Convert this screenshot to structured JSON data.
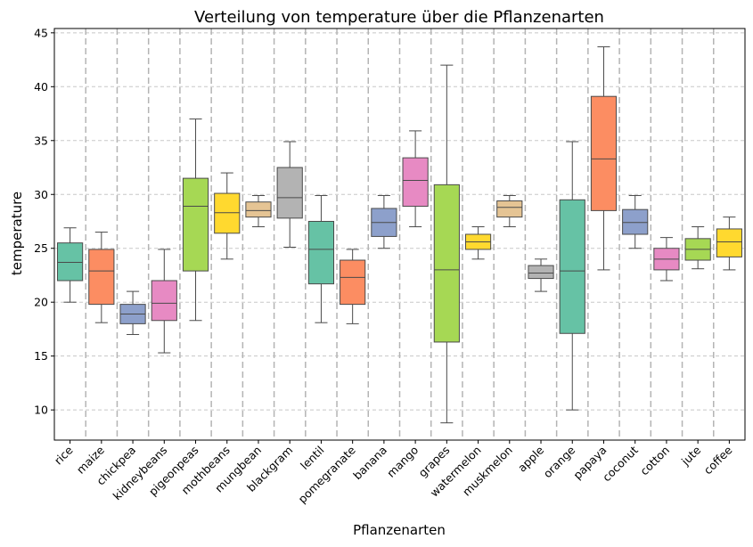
{
  "chart_data": {
    "type": "box",
    "title": "Verteilung von temperature über die Pflanzenarten",
    "xlabel": "Pflanzenarten",
    "ylabel": "temperature",
    "ylim": [
      7.2,
      45.4
    ],
    "yticks": [
      10,
      15,
      20,
      25,
      30,
      35,
      40,
      45
    ],
    "grid": true,
    "categories": [
      "rice",
      "maize",
      "chickpea",
      "kidneybeans",
      "pigeonpeas",
      "mothbeans",
      "mungbean",
      "blackgram",
      "lentil",
      "pomegranate",
      "banana",
      "mango",
      "grapes",
      "watermelon",
      "muskmelon",
      "apple",
      "orange",
      "papaya",
      "coconut",
      "cotton",
      "jute",
      "coffee"
    ],
    "colors": [
      "#66c2a5",
      "#fc8d62",
      "#8da0cb",
      "#e78ac3",
      "#a6d854",
      "#ffd92f",
      "#e5c494",
      "#b3b3b3"
    ],
    "boxes": [
      {
        "min": 20.0,
        "q1": 22.0,
        "median": 23.7,
        "q3": 25.5,
        "max": 26.9
      },
      {
        "min": 18.1,
        "q1": 19.8,
        "median": 22.9,
        "q3": 24.9,
        "max": 26.5
      },
      {
        "min": 17.0,
        "q1": 18.0,
        "median": 18.9,
        "q3": 19.8,
        "max": 21.0
      },
      {
        "min": 15.3,
        "q1": 18.3,
        "median": 19.9,
        "q3": 22.0,
        "max": 24.9
      },
      {
        "min": 18.3,
        "q1": 22.9,
        "median": 28.9,
        "q3": 31.5,
        "max": 37.0
      },
      {
        "min": 24.0,
        "q1": 26.4,
        "median": 28.3,
        "q3": 30.1,
        "max": 32.0
      },
      {
        "min": 27.0,
        "q1": 27.9,
        "median": 28.5,
        "q3": 29.3,
        "max": 29.9
      },
      {
        "min": 25.1,
        "q1": 27.8,
        "median": 29.7,
        "q3": 32.5,
        "max": 34.9
      },
      {
        "min": 18.1,
        "q1": 21.7,
        "median": 24.9,
        "q3": 27.5,
        "max": 29.9
      },
      {
        "min": 18.0,
        "q1": 19.8,
        "median": 22.3,
        "q3": 23.9,
        "max": 24.9
      },
      {
        "min": 25.0,
        "q1": 26.1,
        "median": 27.4,
        "q3": 28.7,
        "max": 29.9
      },
      {
        "min": 27.0,
        "q1": 28.9,
        "median": 31.3,
        "q3": 33.4,
        "max": 35.9
      },
      {
        "min": 8.8,
        "q1": 16.3,
        "median": 23.0,
        "q3": 30.9,
        "max": 42.0
      },
      {
        "min": 24.0,
        "q1": 24.9,
        "median": 25.6,
        "q3": 26.3,
        "max": 27.0
      },
      {
        "min": 27.0,
        "q1": 27.9,
        "median": 28.8,
        "q3": 29.4,
        "max": 29.9
      },
      {
        "min": 21.0,
        "q1": 22.2,
        "median": 22.7,
        "q3": 23.4,
        "max": 24.0
      },
      {
        "min": 10.0,
        "q1": 17.1,
        "median": 22.9,
        "q3": 29.5,
        "max": 34.9
      },
      {
        "min": 23.0,
        "q1": 28.5,
        "median": 33.3,
        "q3": 39.1,
        "max": 43.7
      },
      {
        "min": 25.0,
        "q1": 26.3,
        "median": 27.4,
        "q3": 28.6,
        "max": 29.9
      },
      {
        "min": 22.0,
        "q1": 23.0,
        "median": 24.0,
        "q3": 25.0,
        "max": 26.0
      },
      {
        "min": 23.1,
        "q1": 23.9,
        "median": 24.9,
        "q3": 25.9,
        "max": 27.0
      },
      {
        "min": 23.0,
        "q1": 24.2,
        "median": 25.6,
        "q3": 26.8,
        "max": 27.9
      }
    ]
  }
}
